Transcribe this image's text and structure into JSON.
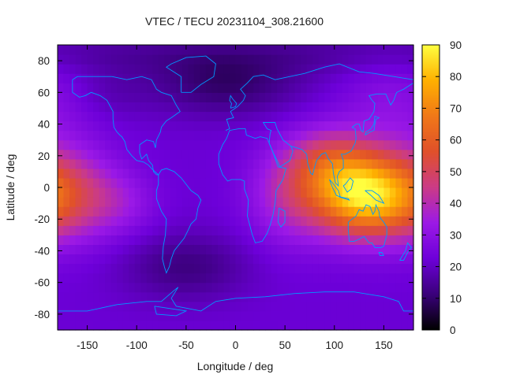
{
  "chart_data": {
    "type": "heatmap",
    "title": "VTEC / TECU 20231104_308.21600",
    "xlabel": "Longitude / deg",
    "ylabel": "Latitude / deg",
    "xlim": [
      -180,
      180
    ],
    "ylim": [
      -90,
      90
    ],
    "x_ticks": [
      -150,
      -100,
      -50,
      0,
      50,
      100,
      150
    ],
    "y_ticks": [
      -80,
      -60,
      -40,
      -20,
      0,
      20,
      40,
      60,
      80
    ],
    "colorbar": {
      "range": [
        0,
        90
      ],
      "ticks": [
        0,
        10,
        20,
        30,
        40,
        50,
        60,
        70,
        80,
        90
      ],
      "colors": [
        "#000000",
        "#3a007a",
        "#6d00d9",
        "#9b19e6",
        "#cb3b86",
        "#e0502a",
        "#f07818",
        "#ffb000",
        "#ffff40"
      ]
    },
    "coastline_color": "#0099ff",
    "field_features": [
      {
        "lon": 135,
        "lat": -5,
        "vtec": 88,
        "note": "maximum"
      },
      {
        "lon": 100,
        "lat": 15,
        "vtec": 70
      },
      {
        "lon": 60,
        "lat": 0,
        "vtec": 55
      },
      {
        "lon": -170,
        "lat": -5,
        "vtec": 48
      },
      {
        "lon": -110,
        "lat": -10,
        "vtec": 40
      },
      {
        "lon": -50,
        "lat": -50,
        "vtec": 12,
        "note": "minimum"
      },
      {
        "lon": -10,
        "lat": 65,
        "vtec": 10
      }
    ]
  }
}
